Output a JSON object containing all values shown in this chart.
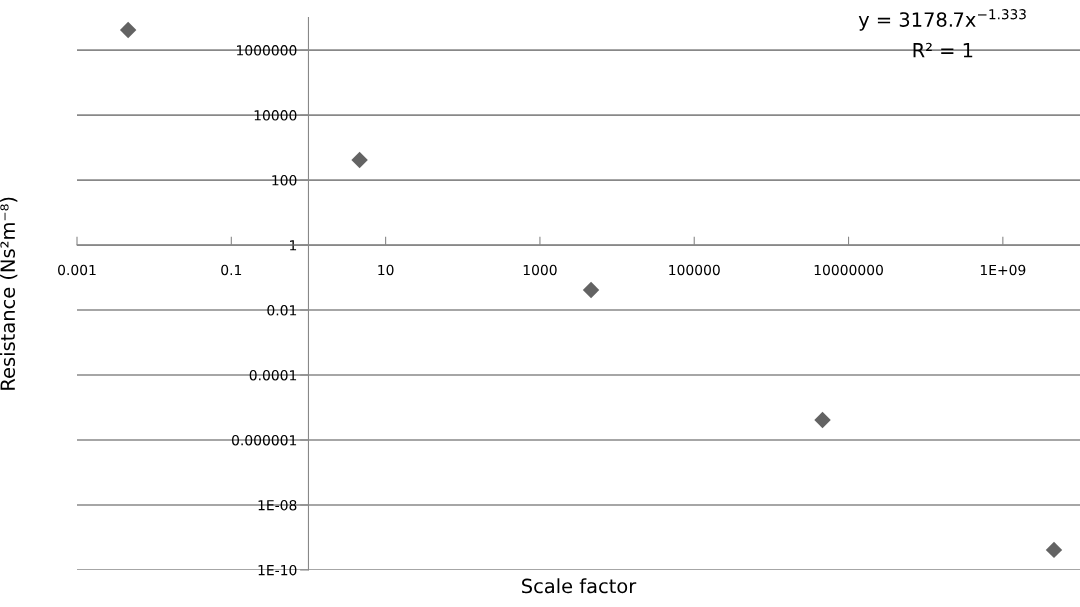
{
  "chart_data": {
    "type": "scatter",
    "xlabel": "Scale factor",
    "ylabel": "Resistance (Ns²m⁻⁸)",
    "x": [
      0.0046,
      4.6,
      4600,
      4600000,
      4600000000
    ],
    "series": [
      {
        "color": "#636363",
        "values": [
          4150000,
          415,
          0.0415,
          4.15e-06,
          4.15e-10
        ]
      }
    ],
    "log": "xy",
    "xlim": [
      0.001,
      10000000000
    ],
    "ylim": [
      1e-10,
      10000000
    ],
    "xticks": [
      0.001,
      0.1,
      10,
      1000,
      100000,
      10000000,
      {
        "value": 1000000000,
        "label": "1E+09"
      }
    ],
    "yticks": [
      {
        "value": 1e-10,
        "label": "1E-10"
      },
      {
        "value": 1e-08,
        "label": "1E-08"
      },
      {
        "value": 1e-06,
        "label": "0.000001"
      },
      0.0001,
      0.01,
      1,
      100,
      10000,
      1000000
    ],
    "grid": "y",
    "marker": "diamond",
    "annotations": [
      "y = 3178.7x$^{−1.333}$",
      "R² = 1"
    ]
  }
}
